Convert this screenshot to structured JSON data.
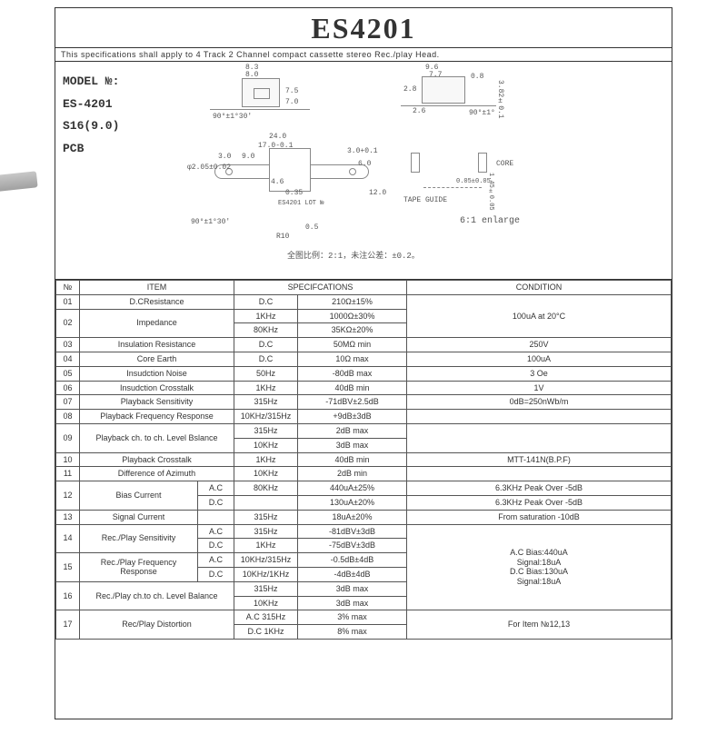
{
  "header": {
    "title": "ES4201",
    "subtitle": "This specifications shall apply to 4 Track 2 Channel compact cassette stereo Rec./play Head."
  },
  "model_box": {
    "label": "MODEL №:",
    "lines": [
      "ES-4201",
      "S16(9.0)",
      "PCB"
    ]
  },
  "drawing": {
    "top_dims": [
      "8.3",
      "8.0",
      "7.5",
      "7.0"
    ],
    "right_dims": [
      "9.6",
      "7.7",
      "0.8",
      "2.8",
      "2.6",
      "3.82±0.1",
      "90°±1°"
    ],
    "mid_dims": [
      "24.0",
      "17.0-0.1",
      "9.0",
      "3.0",
      "4.6",
      "0.35",
      "3.0+0.1",
      "6.0",
      "12.0",
      "0.5",
      "R10",
      "φ2.05±0.02"
    ],
    "angle": "90°±1°30'",
    "marking": "ES4201 LOT №",
    "core_label": "CORE",
    "tape_guide": "TAPE GUIDE",
    "core_dims": [
      "1.45±0.05",
      "0.05±0.05"
    ],
    "enlarge": "6:1 enlarge",
    "scale_note": "全图比例：2:1，未注公差：±0.2。"
  },
  "table": {
    "head": [
      "№",
      "ITEM",
      "SPECIFCATIONS",
      "",
      "CONDITION"
    ],
    "rows": [
      {
        "no": "01",
        "item": "D.CResistance",
        "a": "D.C",
        "b": "210Ω±15%",
        "cond": "",
        "rs_cond": 3,
        "cond_text": "100uA at 20°C"
      },
      {
        "no": "02",
        "item": "Impedance",
        "rs": 2,
        "a": "1KHz",
        "b": "1000Ω±30%"
      },
      {
        "no": "",
        "item": "",
        "a": "80KHz",
        "b": "35KΩ±20%"
      },
      {
        "no": "03",
        "item": "Insulation Resistance",
        "a": "D.C",
        "b": "50MΩ min",
        "cond": "250V"
      },
      {
        "no": "04",
        "item": "Core Earth",
        "a": "D.C",
        "b": "10Ω max",
        "cond": "100uA"
      },
      {
        "no": "05",
        "item": "Insudction Noise",
        "a": "50Hz",
        "b": "-80dB max",
        "cond": "3 Oe"
      },
      {
        "no": "06",
        "item": "Insudction Crosstalk",
        "a": "1KHz",
        "b": "40dB min",
        "cond": "1V"
      },
      {
        "no": "07",
        "item": "Playback Sensitivity",
        "a": "315Hz",
        "b": "-71dBV±2.5dB",
        "cond": "0dB=250nWb/m"
      },
      {
        "no": "08",
        "item": "Playback Frequency Response",
        "a": "10KHz/315Hz",
        "b": "+9dB±3dB",
        "cond": ""
      },
      {
        "no": "09",
        "item": "Playback ch. to ch. Level Bslance",
        "rs": 2,
        "a": "315Hz",
        "b": "2dB max",
        "cond": "",
        "rs_cond": 2
      },
      {
        "no": "",
        "item": "",
        "a": "10KHz",
        "b": "3dB max"
      },
      {
        "no": "10",
        "item": "Playback Crosstalk",
        "a": "1KHz",
        "b": "40dB min",
        "cond": "MTT-141N(B.P.F)"
      },
      {
        "no": "11",
        "item": "Difference of Azimuth",
        "a": "10KHz",
        "b": "2dB min",
        "cond": ""
      },
      {
        "no": "12",
        "item": "Bias Current",
        "rs": 2,
        "sub": "A.C",
        "a": "80KHz",
        "b": "440uA±25%",
        "cond": "6.3KHz Peak Over -5dB"
      },
      {
        "no": "",
        "item": "",
        "sub": "D.C",
        "a": "",
        "b": "130uA±20%",
        "cond": "6.3KHz Peak Over -5dB"
      },
      {
        "no": "13",
        "item": "Signal Current",
        "a": "",
        "sub_blank": true,
        "a2": "315Hz",
        "b": "18uA±20%",
        "cond": "From saturation -10dB"
      },
      {
        "no": "14",
        "item": "Rec./Play Sensitivity",
        "rs": 2,
        "sub": "A.C",
        "a": "315Hz",
        "b": "-81dBV±3dB",
        "rs_cond": 6,
        "cond_text": "A.C Bias:440uA\nSignal:18uA\nD.C Bias:130uA\nSignal:18uA"
      },
      {
        "no": "",
        "item": "",
        "sub": "D.C",
        "a": "1KHz",
        "b": "-75dBV±3dB"
      },
      {
        "no": "15",
        "item": "Rec./Play Frequency Response",
        "rs": 2,
        "sub": "A.C",
        "a": "10KHz/315Hz",
        "b": "-0.5dB±4dB"
      },
      {
        "no": "",
        "item": "",
        "sub": "D.C",
        "a": "10KHz/1KHz",
        "b": "-4dB±4dB"
      },
      {
        "no": "16",
        "item": "Rec./Play ch.to ch. Level Balance",
        "rs": 2,
        "a": "",
        "a2": "315Hz",
        "b": "3dB max"
      },
      {
        "no": "",
        "item": "",
        "a": "",
        "a2": "10KHz",
        "b": "3dB max"
      },
      {
        "no": "17",
        "item": "Rec/Play Distortion",
        "rs": 2,
        "a": "",
        "a2": "A.C 315Hz",
        "b": "3% max",
        "rs_cond": 2,
        "cond_text": "For Item №12,13"
      },
      {
        "no": "",
        "item": "",
        "a": "",
        "a2": "D.C 1KHz",
        "b": "8% max"
      }
    ]
  }
}
